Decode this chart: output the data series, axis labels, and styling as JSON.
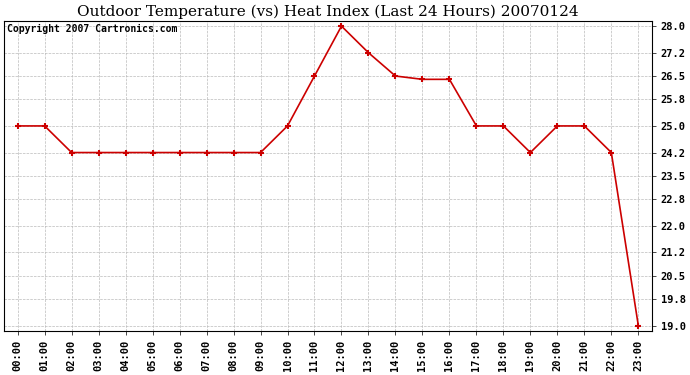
{
  "title": "Outdoor Temperature (vs) Heat Index (Last 24 Hours) 20070124",
  "copyright_text": "Copyright 2007 Cartronics.com",
  "x_labels": [
    "00:00",
    "01:00",
    "02:00",
    "03:00",
    "04:00",
    "05:00",
    "06:00",
    "07:00",
    "08:00",
    "09:00",
    "10:00",
    "11:00",
    "12:00",
    "13:00",
    "14:00",
    "15:00",
    "16:00",
    "17:00",
    "18:00",
    "19:00",
    "20:00",
    "21:00",
    "22:00",
    "23:00"
  ],
  "y_values": [
    25.0,
    25.0,
    24.2,
    24.2,
    24.2,
    24.2,
    24.2,
    24.2,
    24.2,
    24.2,
    25.0,
    26.5,
    28.0,
    27.2,
    26.5,
    26.4,
    26.4,
    25.0,
    25.0,
    24.2,
    25.0,
    25.0,
    24.2,
    19.0
  ],
  "line_color": "#cc0000",
  "marker": "+",
  "marker_size": 5,
  "marker_linewidth": 1.5,
  "line_width": 1.2,
  "background_color": "#ffffff",
  "plot_bg_color": "#ffffff",
  "grid_color": "#bbbbbb",
  "ylim_min": 19.0,
  "ylim_max": 28.0,
  "ytick_values": [
    19.0,
    19.8,
    20.5,
    21.2,
    22.0,
    22.8,
    23.5,
    24.2,
    25.0,
    25.8,
    26.5,
    27.2,
    28.0
  ],
  "ytick_labels": [
    "19.0",
    "19.8",
    "20.5",
    "21.2",
    "22.0",
    "22.8",
    "23.5",
    "24.2",
    "25.0",
    "25.8",
    "26.5",
    "27.2",
    "28.0"
  ],
  "title_fontsize": 11,
  "tick_fontsize": 7.5,
  "copyright_fontsize": 7
}
